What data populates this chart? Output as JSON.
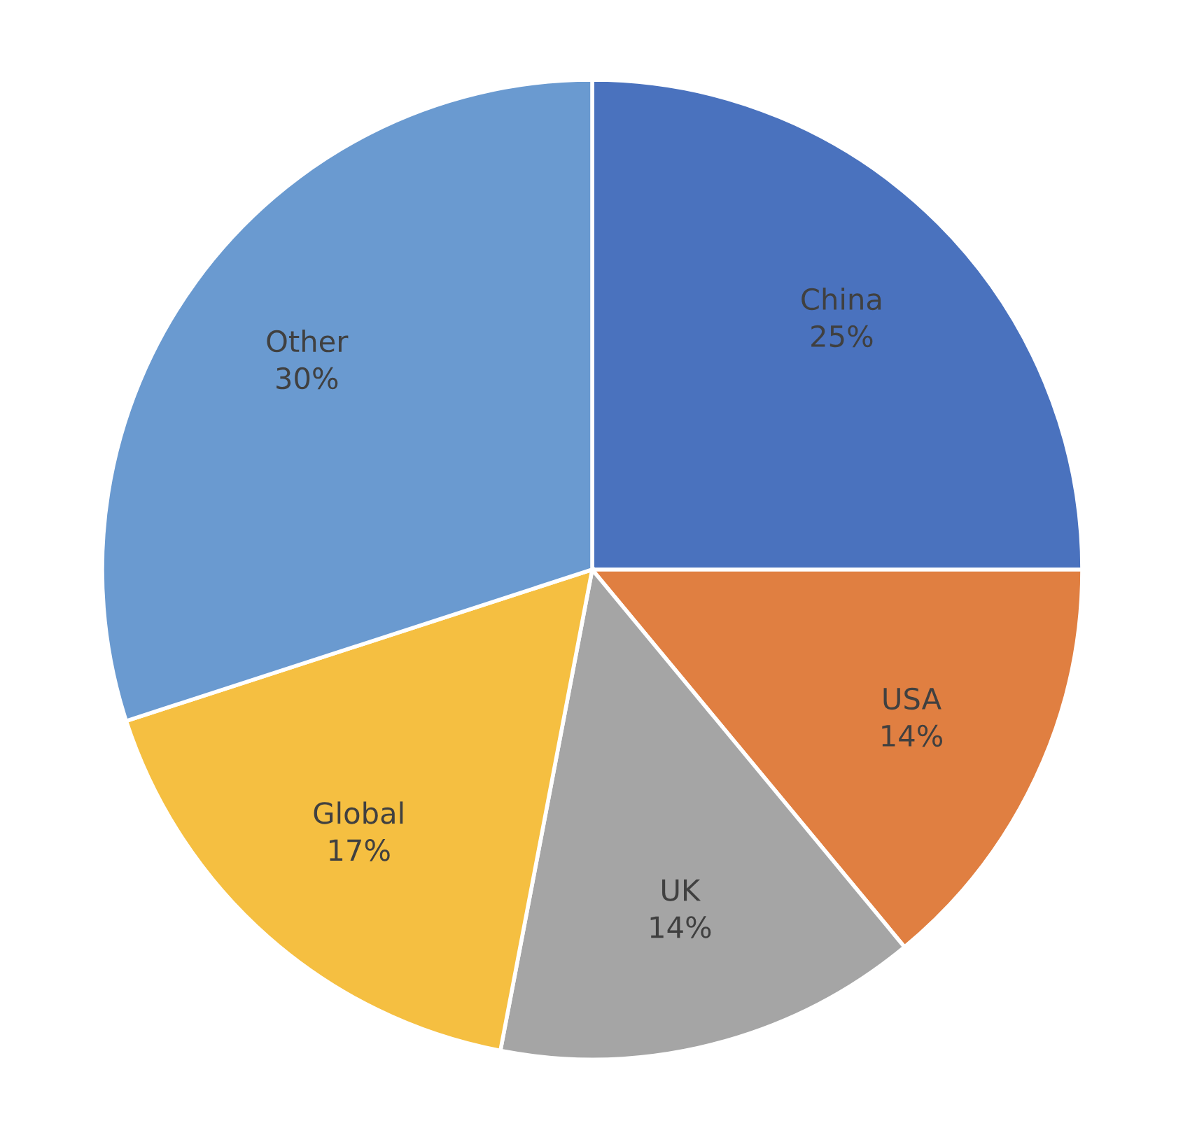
{
  "chart_data": {
    "type": "pie",
    "categories": [
      "China",
      "USA",
      "UK",
      "Global",
      "Other"
    ],
    "values": [
      25,
      14,
      14,
      17,
      30
    ],
    "value_labels": [
      "25%",
      "14%",
      "14%",
      "17%",
      "30%"
    ],
    "colors": [
      "#4a72be",
      "#e07f41",
      "#a5a5a5",
      "#f5bf41",
      "#6a9ad0"
    ]
  }
}
